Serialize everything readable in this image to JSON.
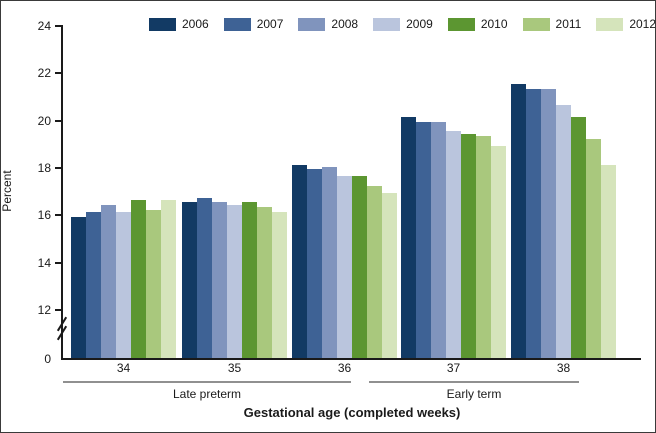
{
  "chart_data": {
    "type": "bar",
    "title": "",
    "ylabel": "Percent",
    "xlabel": "Gestational age (completed weeks)",
    "categories": [
      "34",
      "35",
      "36",
      "37",
      "38"
    ],
    "category_groups": [
      {
        "label": "Late preterm",
        "categories": [
          "34",
          "35",
          "36"
        ]
      },
      {
        "label": "Early term",
        "categories": [
          "37",
          "38"
        ]
      }
    ],
    "series": [
      {
        "name": "2006",
        "color": "#123a64",
        "values": [
          15.9,
          16.5,
          18.1,
          20.1,
          21.5
        ]
      },
      {
        "name": "2007",
        "color": "#3e6295",
        "values": [
          16.1,
          16.7,
          17.9,
          19.9,
          21.3
        ]
      },
      {
        "name": "2008",
        "color": "#8094bd",
        "values": [
          16.4,
          16.5,
          18.0,
          19.9,
          21.3
        ]
      },
      {
        "name": "2009",
        "color": "#bac5dd",
        "values": [
          16.1,
          16.4,
          17.6,
          19.5,
          20.6
        ]
      },
      {
        "name": "2010",
        "color": "#5c9631",
        "values": [
          16.6,
          16.5,
          17.6,
          19.4,
          20.1
        ]
      },
      {
        "name": "2011",
        "color": "#a9c87d",
        "values": [
          16.2,
          16.3,
          17.2,
          19.3,
          19.2
        ]
      },
      {
        "name": "2012",
        "color": "#d5e4bb",
        "values": [
          16.6,
          16.1,
          16.9,
          18.9,
          18.1
        ]
      }
    ],
    "y_ticks": [
      24,
      22,
      20,
      18,
      16,
      14,
      12,
      0
    ],
    "ylim_visible": [
      12,
      24
    ],
    "axis_break": true,
    "grid": false,
    "legend_position": "top"
  }
}
